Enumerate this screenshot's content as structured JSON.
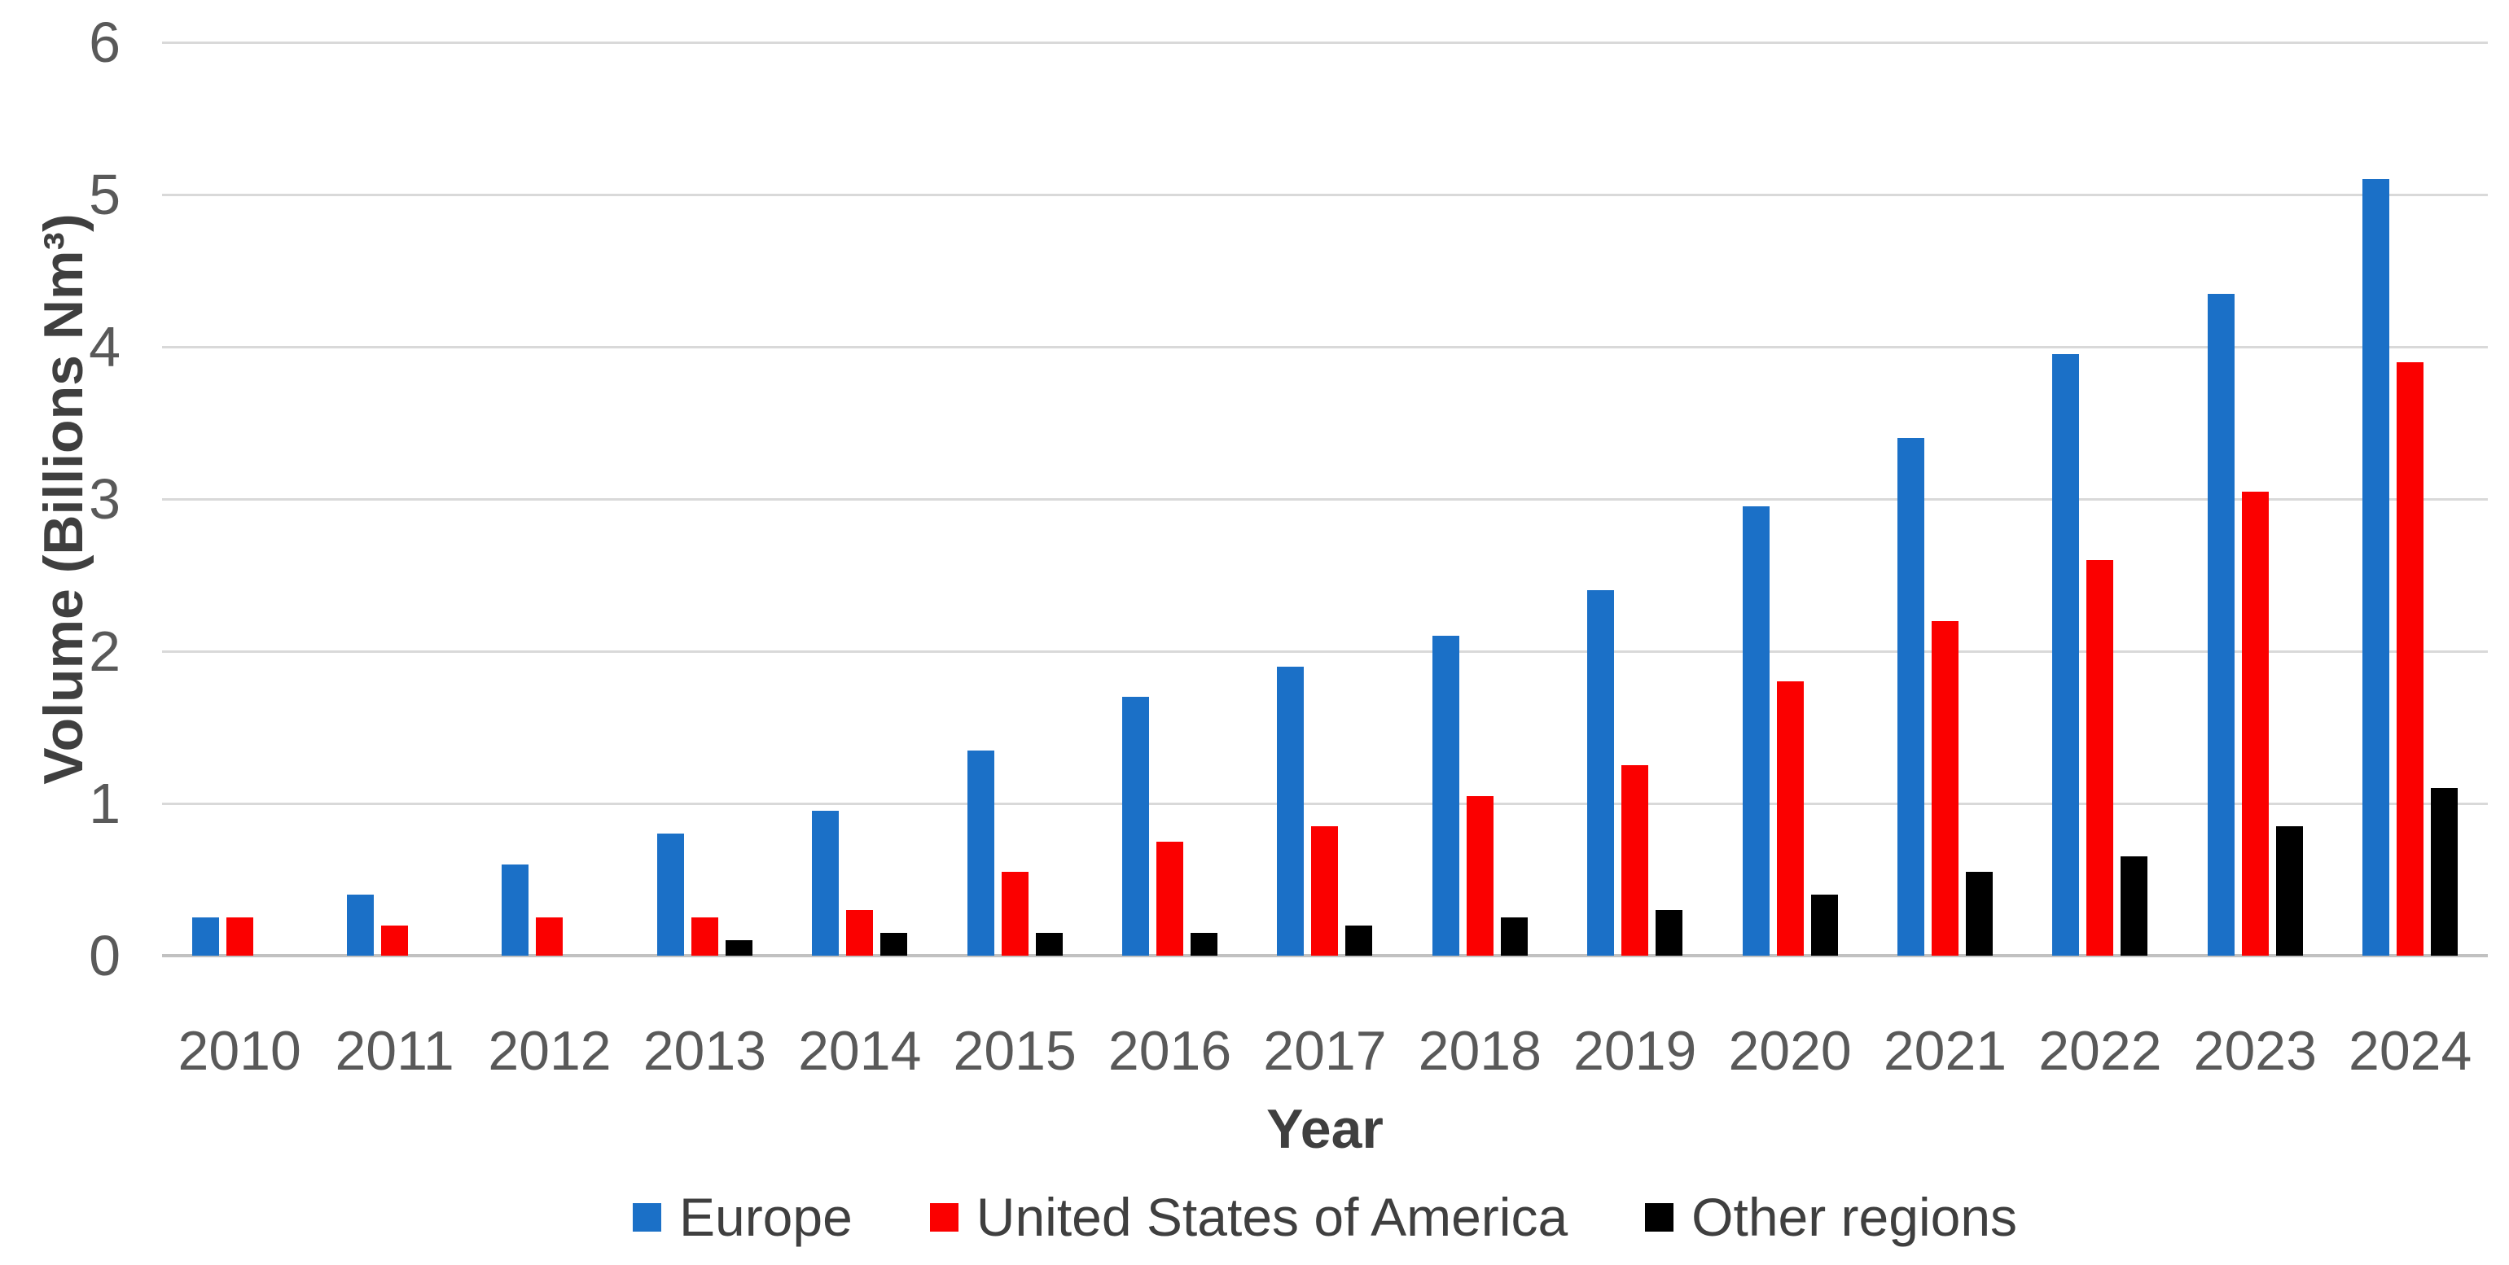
{
  "chart_data": {
    "type": "bar",
    "title": "",
    "categories": [
      "2010",
      "2011",
      "2012",
      "2013",
      "2014",
      "2015",
      "2016",
      "2017",
      "2018",
      "2019",
      "2020",
      "2021",
      "2022",
      "2023",
      "2024"
    ],
    "series": [
      {
        "name": "Europe",
        "color": "#1b70c7",
        "values": [
          0.25,
          0.4,
          0.6,
          0.8,
          0.95,
          1.35,
          1.7,
          1.9,
          2.1,
          2.4,
          2.95,
          3.4,
          3.95,
          4.35,
          5.1
        ]
      },
      {
        "name": "United States of America",
        "color": "#fb0000",
        "values": [
          0.25,
          0.2,
          0.25,
          0.25,
          0.3,
          0.55,
          0.75,
          0.85,
          1.05,
          1.25,
          1.8,
          2.2,
          2.6,
          3.05,
          3.9
        ]
      },
      {
        "name": "Other regions",
        "color": "#000000",
        "values": [
          0,
          0,
          0,
          0.1,
          0.15,
          0.15,
          0.15,
          0.2,
          0.25,
          0.3,
          0.4,
          0.55,
          0.65,
          0.85,
          1.1
        ]
      }
    ],
    "xlabel": "Year",
    "ylabel": "Volume (Billions Nm³)",
    "ylim": [
      0,
      6
    ],
    "yticks": [
      "0",
      "1",
      "2",
      "3",
      "4",
      "5",
      "6"
    ],
    "grid": "horizontal",
    "legend_position": "bottom",
    "style": {
      "grid_color": "#d9d9d9",
      "axis_line_color": "#c1c1c1",
      "tick_text_color": "#595959",
      "title_text_color": "#3f3f3f",
      "legend_text_color": "#3f3f3f",
      "background": "#ffffff"
    }
  }
}
